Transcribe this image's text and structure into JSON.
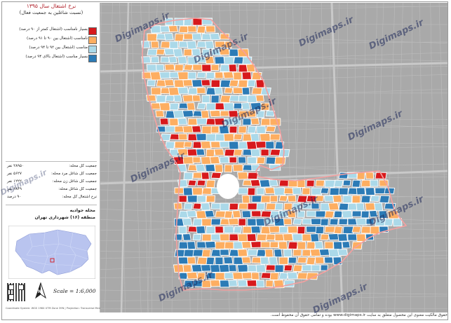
{
  "title": "نرخ اشتغال سال ۱۳۹۵",
  "subtitle": "(نسبت شاغلین به جمعیت فعال)",
  "legend": [
    {
      "label": "بسیار نامناسب (اشتغال کمتر از ۹۰ درصد)",
      "color": "#d7191c"
    },
    {
      "label": "نامناسب (اشتغال بین ۹۰ تا ۹۱ درصد)",
      "color": "#fdae61"
    },
    {
      "label": "مناسب (اشتغال بین ۹۲ تا ۹۴ درصد)",
      "color": "#abd9e9"
    },
    {
      "label": "بسیار مناسب (اشتغال بالای ۹۴ درصد)",
      "color": "#2c7bb6"
    }
  ],
  "stats": [
    {
      "label": "جمعیت کل محله:",
      "value": "۲۸۹۵۰ نفر"
    },
    {
      "label": "جمعیت کل شاغل مرد محله:",
      "value": "۵۶۲۷ نفر"
    },
    {
      "label": "جمعیت کل شاغل زن محله:",
      "value": "۱۲۲۲ نفر"
    },
    {
      "label": "جمعیت کل شاغل محله:",
      "value": "۶۸۴۹ نفر"
    },
    {
      "label": "نرخ اشتغال کل محله:",
      "value": "۹۰ درصد"
    }
  ],
  "location": {
    "neighborhood": "محله جوادیه",
    "district": "منطقه (۱۶) شهرداری تهران"
  },
  "scale": "Scale = 1:6,000",
  "north": "N",
  "watermark": "Digimaps.ir",
  "footer": "حقوق مالکیت معنوی این محصول متعلق به سایت www.digimaps.ir بوده و تمامی حقوق آن محفوظ است.",
  "credit": "Coordinate System: WGS 1984 UTM Zone 39N | Projection: Transverse Mercator",
  "colors": {
    "red": "#d7191c",
    "orange": "#fdae61",
    "light": "#abd9e9",
    "blue": "#2c7bb6",
    "base": "#a9a9a9"
  }
}
